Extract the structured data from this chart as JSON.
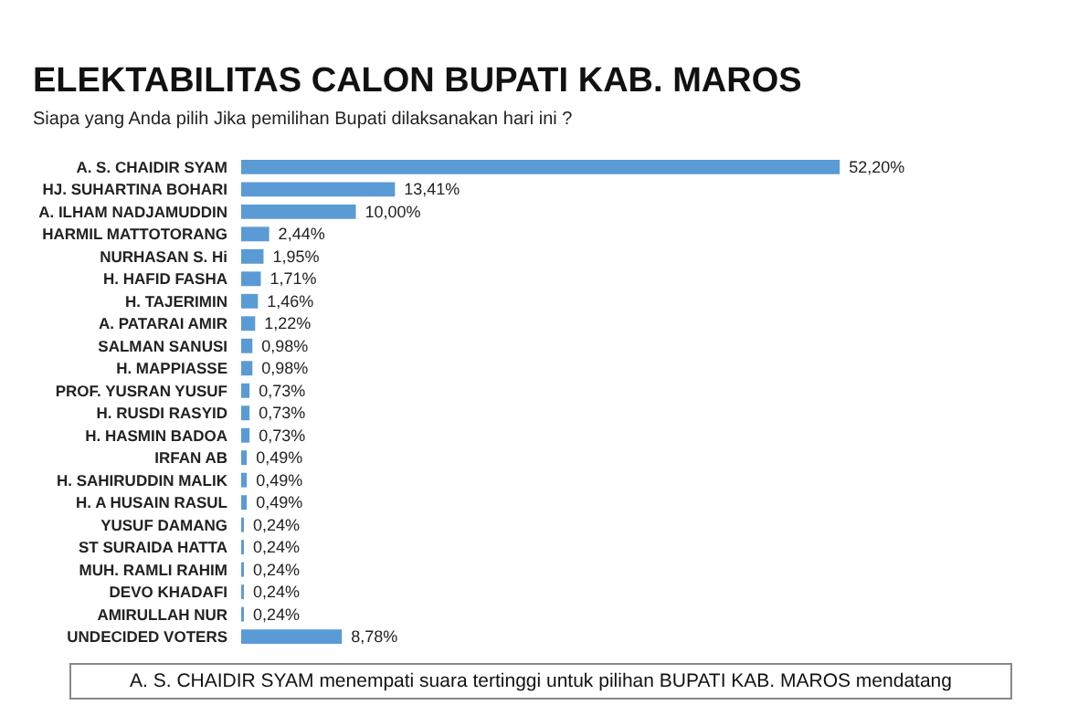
{
  "chart_data": {
    "type": "bar",
    "orientation": "horizontal",
    "title": "ELEKTABILITAS CALON BUPATI KAB. MAROS",
    "subtitle": "Siapa yang Anda pilih Jika pemilihan Bupati dilaksanakan hari ini ?",
    "categories": [
      "A. S. CHAIDIR SYAM",
      "HJ. SUHARTINA BOHARI",
      "A. ILHAM NADJAMUDDIN",
      "HARMIL MATTOTORANG",
      "NURHASAN S. Hi",
      "H. HAFID FASHA",
      "H. TAJERIMIN",
      "A. PATARAI AMIR",
      "SALMAN SANUSI",
      "H. MAPPIASSE",
      "PROF. YUSRAN YUSUF",
      "H. RUSDI RASYID",
      "H. HASMIN BADOA",
      "IRFAN AB",
      "H. SAHIRUDDIN MALIK",
      "H. A HUSAIN RASUL",
      "YUSUF DAMANG",
      "ST SURAIDA HATTA",
      "MUH. RAMLI RAHIM",
      "DEVO KHADAFI",
      "AMIRULLAH NUR",
      "UNDECIDED VOTERS"
    ],
    "values": [
      52.2,
      13.41,
      10.0,
      2.44,
      1.95,
      1.71,
      1.46,
      1.22,
      0.98,
      0.98,
      0.73,
      0.73,
      0.73,
      0.49,
      0.49,
      0.49,
      0.24,
      0.24,
      0.24,
      0.24,
      0.24,
      8.78
    ],
    "value_labels": [
      "52,20%",
      "13,41%",
      "10,00%",
      "2,44%",
      "1,95%",
      "1,71%",
      "1,46%",
      "1,22%",
      "0,98%",
      "0,98%",
      "0,73%",
      "0,73%",
      "0,73%",
      "0,49%",
      "0,49%",
      "0,49%",
      "0,24%",
      "0,24%",
      "0,24%",
      "0,24%",
      "0,24%",
      "8,78%"
    ],
    "color": "#5b9bd5",
    "annotations": [
      "A. S. CHAIDIR SYAM menempati suara tertinggi untuk pilihan BUPATI KAB. MAROS mendatang"
    ]
  }
}
